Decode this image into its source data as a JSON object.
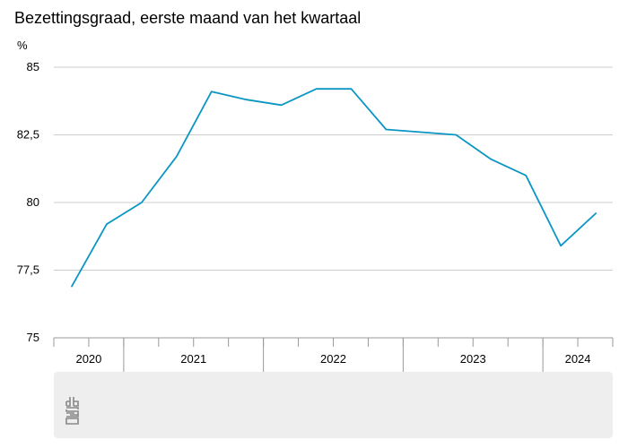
{
  "chart_data": {
    "type": "line",
    "title": "Bezettingsgraad, eerste maand van het kwartaal",
    "ylabel": "%",
    "ylim": [
      75,
      85
    ],
    "y_ticks": [
      "75",
      "77,5",
      "80",
      "82,5",
      "85"
    ],
    "y_tick_values": [
      75,
      77.5,
      80,
      82.5,
      85
    ],
    "grid": true,
    "legend": "none",
    "year_labels": [
      "2020",
      "2021",
      "2022",
      "2023",
      "2024"
    ],
    "year_quarter_counts": [
      2,
      4,
      4,
      4,
      2
    ],
    "colors": {
      "line": "#0b96c4",
      "grid": "#cccccc",
      "axis": "#999999",
      "footer_bg": "#eeeeee",
      "logo": "#888888"
    },
    "series": [
      {
        "values": [
          76.9,
          79.2,
          80.0,
          81.7,
          84.1,
          83.8,
          83.6,
          84.2,
          84.2,
          82.7,
          82.6,
          82.5,
          81.6,
          81.0,
          78.4,
          79.6
        ]
      }
    ],
    "logo_icon": "cbs-logo-icon"
  }
}
